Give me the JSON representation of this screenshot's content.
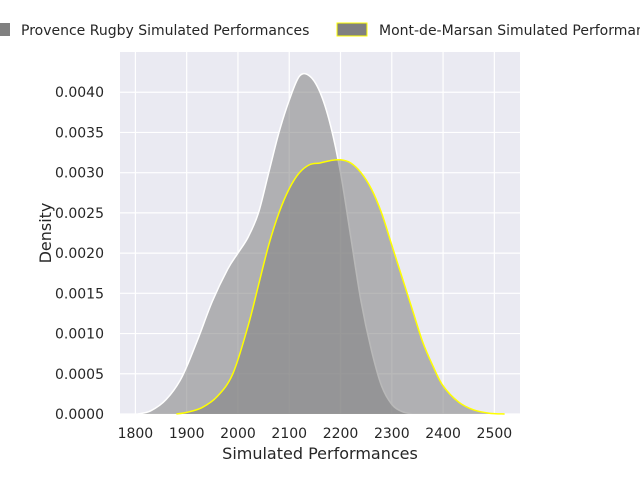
{
  "chart_data": {
    "type": "area",
    "title": "",
    "xlabel": "Simulated Performances",
    "ylabel": "Density",
    "xlim": [
      1770,
      2550
    ],
    "ylim": [
      0,
      0.0045
    ],
    "x_ticks": [
      "1800",
      "1900",
      "2000",
      "2100",
      "2200",
      "2300",
      "2400",
      "2500"
    ],
    "y_ticks": [
      "0.0000",
      "0.0005",
      "0.0010",
      "0.0015",
      "0.0020",
      "0.0025",
      "0.0030",
      "0.0035",
      "0.0040"
    ],
    "grid": true,
    "legend_position": "top",
    "series": [
      {
        "name": "Provence Rugby Simulated Performances",
        "fill_color": "#808080",
        "edge_color": "#ffffff",
        "x": [
          1805,
          1830,
          1860,
          1890,
          1920,
          1950,
          1980,
          2000,
          2020,
          2040,
          2060,
          2080,
          2100,
          2120,
          2140,
          2160,
          2180,
          2200,
          2220,
          2240,
          2260,
          2280,
          2300,
          2320,
          2340
        ],
        "y": [
          0.0,
          4e-05,
          0.00018,
          0.00045,
          0.0009,
          0.0014,
          0.0018,
          0.002,
          0.0022,
          0.0025,
          0.003,
          0.0035,
          0.0039,
          0.0042,
          0.0042,
          0.004,
          0.0036,
          0.003,
          0.0022,
          0.0014,
          0.0008,
          0.00035,
          0.00012,
          3e-05,
          0.0
        ]
      },
      {
        "name": "Mont-de-Marsan Simulated Performances",
        "fill_color": "#808080",
        "edge_color": "#ffff00",
        "x": [
          1880,
          1900,
          1930,
          1960,
          1990,
          2020,
          2040,
          2060,
          2080,
          2100,
          2120,
          2140,
          2160,
          2180,
          2200,
          2220,
          2240,
          2260,
          2280,
          2300,
          2320,
          2340,
          2360,
          2380,
          2400,
          2430,
          2460,
          2490,
          2520
        ],
        "y": [
          0.0,
          2e-05,
          8e-05,
          0.00022,
          0.0005,
          0.0011,
          0.0016,
          0.0021,
          0.0025,
          0.0028,
          0.003,
          0.0031,
          0.00312,
          0.00315,
          0.00316,
          0.00312,
          0.003,
          0.0028,
          0.0025,
          0.0021,
          0.0017,
          0.0013,
          0.0009,
          0.0006,
          0.00035,
          0.00015,
          5e-05,
          1e-05,
          0.0
        ]
      }
    ]
  }
}
